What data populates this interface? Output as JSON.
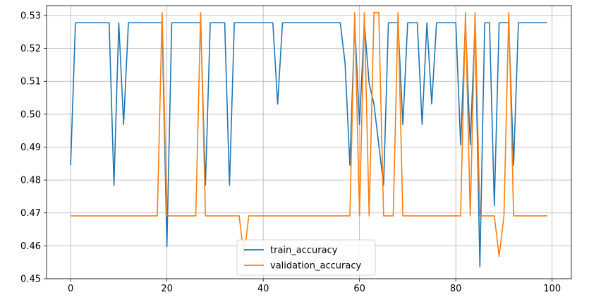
{
  "chart_data": {
    "type": "line",
    "x": [
      0,
      1,
      2,
      3,
      4,
      5,
      6,
      7,
      8,
      9,
      10,
      11,
      12,
      13,
      14,
      15,
      16,
      17,
      18,
      19,
      20,
      21,
      22,
      23,
      24,
      25,
      26,
      27,
      28,
      29,
      30,
      31,
      32,
      33,
      34,
      35,
      36,
      37,
      38,
      39,
      40,
      41,
      42,
      43,
      44,
      45,
      46,
      47,
      48,
      49,
      50,
      51,
      52,
      53,
      54,
      55,
      56,
      57,
      58,
      59,
      60,
      61,
      62,
      63,
      64,
      65,
      66,
      67,
      68,
      69,
      70,
      71,
      72,
      73,
      74,
      75,
      76,
      77,
      78,
      79,
      80,
      81,
      82,
      83,
      84,
      85,
      86,
      87,
      88,
      89,
      90,
      91,
      92,
      93,
      94,
      95,
      96,
      97,
      98,
      99
    ],
    "series": [
      {
        "name": "train_accuracy",
        "color": "#1f77b4",
        "values": [
          0.4845,
          0.5278,
          0.5278,
          0.5278,
          0.5278,
          0.5278,
          0.5278,
          0.5278,
          0.5278,
          0.4784,
          0.5278,
          0.4969,
          0.5278,
          0.5278,
          0.5278,
          0.5278,
          0.5278,
          0.5278,
          0.5278,
          0.5278,
          0.4598,
          0.5278,
          0.5278,
          0.5278,
          0.5278,
          0.5278,
          0.5278,
          0.5278,
          0.4784,
          0.5278,
          0.5278,
          0.5278,
          0.5278,
          0.4784,
          0.5278,
          0.5278,
          0.5278,
          0.5278,
          0.5278,
          0.5278,
          0.5278,
          0.5278,
          0.5278,
          0.5031,
          0.5278,
          0.5278,
          0.5278,
          0.5278,
          0.5278,
          0.5278,
          0.5278,
          0.5278,
          0.5278,
          0.5278,
          0.5278,
          0.5278,
          0.5278,
          0.5155,
          0.4845,
          0.5278,
          0.4969,
          0.5278,
          0.5093,
          0.5031,
          0.4907,
          0.4784,
          0.5278,
          0.5278,
          0.5278,
          0.4969,
          0.5278,
          0.5278,
          0.5278,
          0.4969,
          0.5278,
          0.5031,
          0.5278,
          0.5278,
          0.5278,
          0.5278,
          0.5278,
          0.4907,
          0.5278,
          0.4907,
          0.5278,
          0.4536,
          0.5278,
          0.5278,
          0.4722,
          0.5278,
          0.5278,
          0.5278,
          0.4845,
          0.5278,
          0.5278,
          0.5278,
          0.5278,
          0.5278,
          0.5278,
          0.5278
        ]
      },
      {
        "name": "validation_accuracy",
        "color": "#ff7f0e",
        "values": [
          0.4691,
          0.4691,
          0.4691,
          0.4691,
          0.4691,
          0.4691,
          0.4691,
          0.4691,
          0.4691,
          0.4691,
          0.4691,
          0.4691,
          0.4691,
          0.4691,
          0.4691,
          0.4691,
          0.4691,
          0.4691,
          0.4691,
          0.5309,
          0.4691,
          0.4691,
          0.4691,
          0.4691,
          0.4691,
          0.4691,
          0.4691,
          0.5309,
          0.4691,
          0.4691,
          0.4691,
          0.4691,
          0.4691,
          0.4691,
          0.4691,
          0.4691,
          0.4568,
          0.4691,
          0.4691,
          0.4691,
          0.4691,
          0.4691,
          0.4691,
          0.4691,
          0.4691,
          0.4691,
          0.4691,
          0.4691,
          0.4691,
          0.4691,
          0.4691,
          0.4691,
          0.4691,
          0.4691,
          0.4691,
          0.4691,
          0.4691,
          0.4691,
          0.4691,
          0.5309,
          0.4691,
          0.5309,
          0.4691,
          0.5309,
          0.5309,
          0.4691,
          0.4691,
          0.4691,
          0.5309,
          0.4691,
          0.4691,
          0.4691,
          0.4691,
          0.4691,
          0.4691,
          0.4691,
          0.4691,
          0.4691,
          0.4691,
          0.4691,
          0.4691,
          0.4691,
          0.5309,
          0.4691,
          0.5309,
          0.4691,
          0.4691,
          0.4691,
          0.4691,
          0.4568,
          0.4691,
          0.5309,
          0.4691,
          0.4691,
          0.4691,
          0.4691,
          0.4691,
          0.4691,
          0.4691,
          0.4691
        ]
      }
    ],
    "title": "",
    "xlabel": "",
    "ylabel": "",
    "xlim": [
      -5,
      104
    ],
    "ylim": [
      0.45,
      0.533
    ],
    "xticks": [
      0,
      20,
      40,
      60,
      80,
      100
    ],
    "xtick_labels": [
      "0",
      "20",
      "40",
      "60",
      "80",
      "100"
    ],
    "yticks": [
      0.45,
      0.46,
      0.47,
      0.48,
      0.49,
      0.5,
      0.51,
      0.52,
      0.53
    ],
    "ytick_labels": [
      "0.45",
      "0.46",
      "0.47",
      "0.48",
      "0.49",
      "0.50",
      "0.51",
      "0.52",
      "0.53"
    ],
    "grid": true,
    "legend_position": "lower-center"
  }
}
